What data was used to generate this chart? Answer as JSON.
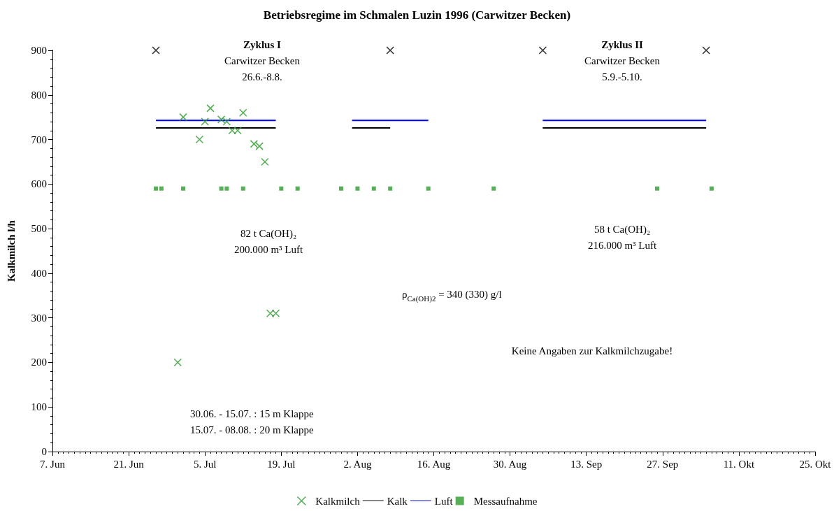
{
  "chart_data": {
    "type": "scatter",
    "title": "Betriebsregime im Schmalen Luzin 1996 (Carwitzer Becken)",
    "ylabel": "Kalkmilch l/h",
    "xlim": [
      "1996-06-07",
      "1996-10-25"
    ],
    "ylim": [
      0,
      900
    ],
    "xticks": [
      {
        "value": "1996-06-07",
        "label": "7. Jun"
      },
      {
        "value": "1996-06-21",
        "label": "21. Jun"
      },
      {
        "value": "1996-07-05",
        "label": "5. Jul"
      },
      {
        "value": "1996-07-19",
        "label": "19. Jul"
      },
      {
        "value": "1996-08-02",
        "label": "2. Aug"
      },
      {
        "value": "1996-08-16",
        "label": "16. Aug"
      },
      {
        "value": "1996-08-30",
        "label": "30. Aug"
      },
      {
        "value": "1996-09-13",
        "label": "13. Sep"
      },
      {
        "value": "1996-09-27",
        "label": "27. Sep"
      },
      {
        "value": "1996-10-11",
        "label": "11. Okt"
      },
      {
        "value": "1996-10-25",
        "label": "25. Okt"
      }
    ],
    "yticks": [
      0,
      100,
      200,
      300,
      400,
      500,
      600,
      700,
      800,
      900
    ],
    "grid": false,
    "legend": "bottom",
    "series": [
      {
        "name": "Kalkmilch",
        "marker": "cross",
        "color": "#2e9b2e",
        "x": [
          "1996-06-30",
          "1996-07-01",
          "1996-07-04",
          "1996-07-05",
          "1996-07-06",
          "1996-07-08",
          "1996-07-09",
          "1996-07-10",
          "1996-07-11",
          "1996-07-12",
          "1996-07-14",
          "1996-07-15",
          "1996-07-16",
          "1996-07-17",
          "1996-07-18"
        ],
        "values": [
          200,
          750,
          700,
          740,
          770,
          745,
          740,
          720,
          720,
          760,
          690,
          685,
          650,
          310,
          310
        ]
      },
      {
        "name": "Kalk",
        "type": "line",
        "marker": "none",
        "line_style": "solid",
        "color": "#000000",
        "x": [
          "1996-06-26",
          "1996-07-18",
          "1996-07-25",
          "1996-08-01",
          "1996-08-08",
          "1996-08-20",
          "1996-09-05",
          "1996-10-05"
        ],
        "values": [
          726,
          726,
          null,
          726,
          726,
          null,
          726,
          726
        ]
      },
      {
        "name": "Luft",
        "type": "line",
        "marker": "none",
        "line_style": "solid",
        "color": "#0000ff",
        "x": [
          "1996-06-26",
          "1996-07-18",
          "1996-07-25",
          "1996-08-01",
          "1996-08-15",
          "1996-08-25",
          "1996-09-05",
          "1996-10-05"
        ],
        "values": [
          743,
          743,
          null,
          743,
          743,
          null,
          743,
          743
        ]
      },
      {
        "name": "Messaufnahme",
        "marker": "square",
        "color": "#2e9b2e",
        "x": [
          "1996-06-26",
          "1996-06-27",
          "1996-07-01",
          "1996-07-08",
          "1996-07-09",
          "1996-07-12",
          "1996-07-19",
          "1996-07-22",
          "1996-07-30",
          "1996-08-02",
          "1996-08-05",
          "1996-08-08",
          "1996-08-15",
          "1996-08-27",
          "1996-09-26",
          "1996-10-06"
        ],
        "values": [
          590,
          590,
          590,
          590,
          590,
          590,
          590,
          590,
          590,
          590,
          590,
          590,
          590,
          590,
          590,
          590
        ]
      },
      {
        "marker": "cross",
        "color": "#000000",
        "x": [
          "1996-06-26",
          "1996-08-08",
          "1996-09-05",
          "1996-10-05"
        ],
        "values": [
          900,
          900,
          900,
          900
        ]
      }
    ],
    "annotations": [
      "Zyklus I\nCarwitzer Becken\n26.6.-8.8.",
      "Zyklus II\nCarwitzer Becken\n5.9.-5.10.",
      "82 t Ca(OH)₂\n200.000 m³ Luft",
      "58 t Ca(OH)₂\n216.000 m³ Luft",
      "ρ$_{Ca(OH)2}$ = 340 (330) g/l",
      "Keine Angaben zur Kalkmilchzugabe!",
      "30.06. - 15.07. : 15 m Klappe\n15.07. - 08.08. : 20 m Klappe"
    ]
  }
}
